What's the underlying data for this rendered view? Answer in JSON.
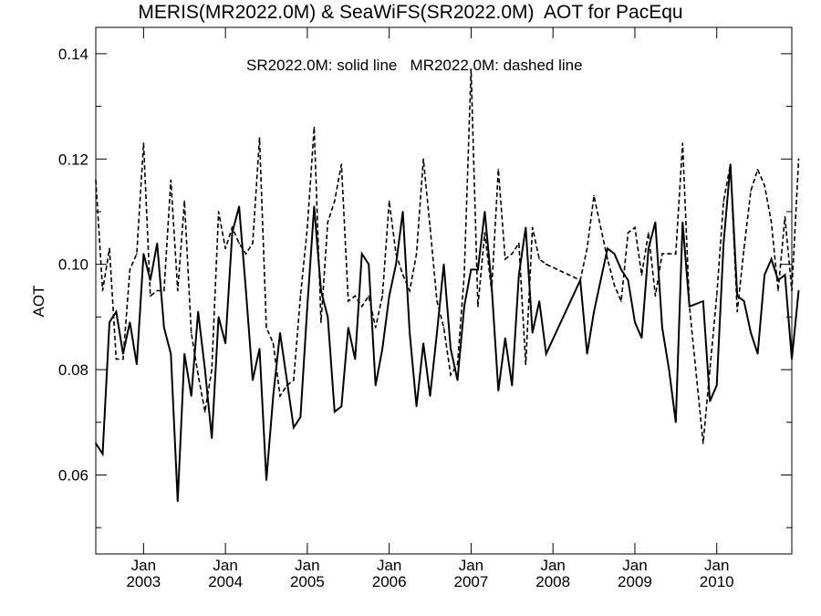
{
  "chart_data": {
    "type": "line",
    "title": "MERIS(MR2022.0M) & SeaWiFS(SR2022.0M)  AOT for PacEqu",
    "annotation": "SR2022.0M: solid line   MR2022.0M: dashed line",
    "ylabel": "AOT",
    "xlabel": "",
    "xlim": [
      "2002-06",
      "2010-12"
    ],
    "ylim": [
      0.045,
      0.145
    ],
    "y_ticks": [
      "0.06",
      "0.08",
      "0.10",
      "0.12",
      "0.14"
    ],
    "x_ticks": [
      {
        "top": "Jan",
        "bottom": "2003",
        "date": "2003-01"
      },
      {
        "top": "Jan",
        "bottom": "2004",
        "date": "2004-01"
      },
      {
        "top": "Jan",
        "bottom": "2005",
        "date": "2005-01"
      },
      {
        "top": "Jan",
        "bottom": "2006",
        "date": "2006-01"
      },
      {
        "top": "Jan",
        "bottom": "2007",
        "date": "2007-01"
      },
      {
        "top": "Jan",
        "bottom": "2008",
        "date": "2008-01"
      },
      {
        "top": "Jan",
        "bottom": "2009",
        "date": "2009-01"
      },
      {
        "top": "Jan",
        "bottom": "2010",
        "date": "2010-01"
      }
    ],
    "series": [
      {
        "style": "solid",
        "points": [
          [
            "2002-06",
            0.066
          ],
          [
            "2002-07",
            0.064
          ],
          [
            "2002-08",
            0.089
          ],
          [
            "2002-09",
            0.091
          ],
          [
            "2002-10",
            0.083
          ],
          [
            "2002-11",
            0.089
          ],
          [
            "2002-12",
            0.081
          ],
          [
            "2003-01",
            0.102
          ],
          [
            "2003-02",
            0.097
          ],
          [
            "2003-03",
            0.104
          ],
          [
            "2003-04",
            0.088
          ],
          [
            "2003-05",
            0.083
          ],
          [
            "2003-06",
            0.055
          ],
          [
            "2003-07",
            0.083
          ],
          [
            "2003-08",
            0.075
          ],
          [
            "2003-09",
            0.091
          ],
          [
            "2003-10",
            0.08
          ],
          [
            "2003-11",
            0.067
          ],
          [
            "2003-12",
            0.09
          ],
          [
            "2004-01",
            0.085
          ],
          [
            "2004-02",
            0.106
          ],
          [
            "2004-03",
            0.111
          ],
          [
            "2004-04",
            0.095
          ],
          [
            "2004-05",
            0.078
          ],
          [
            "2004-06",
            0.084
          ],
          [
            "2004-07",
            0.059
          ],
          [
            "2004-08",
            0.075
          ],
          [
            "2004-09",
            0.087
          ],
          [
            "2004-10",
            0.078
          ],
          [
            "2004-11",
            0.069
          ],
          [
            "2004-12",
            0.071
          ],
          [
            "2005-01",
            0.092
          ],
          [
            "2005-02",
            0.111
          ],
          [
            "2005-03",
            0.095
          ],
          [
            "2005-04",
            0.09
          ],
          [
            "2005-05",
            0.072
          ],
          [
            "2005-06",
            0.073
          ],
          [
            "2005-07",
            0.088
          ],
          [
            "2005-08",
            0.082
          ],
          [
            "2005-09",
            0.102
          ],
          [
            "2005-10",
            0.1
          ],
          [
            "2005-11",
            0.077
          ],
          [
            "2005-12",
            0.084
          ],
          [
            "2006-01",
            0.094
          ],
          [
            "2006-02",
            0.1
          ],
          [
            "2006-03",
            0.11
          ],
          [
            "2006-04",
            0.087
          ],
          [
            "2006-05",
            0.073
          ],
          [
            "2006-06",
            0.085
          ],
          [
            "2006-07",
            0.075
          ],
          [
            "2006-08",
            0.087
          ],
          [
            "2006-09",
            0.1
          ],
          [
            "2006-10",
            0.084
          ],
          [
            "2006-11",
            0.078
          ],
          [
            "2006-12",
            0.092
          ],
          [
            "2007-01",
            0.099
          ],
          [
            "2007-02",
            0.099
          ],
          [
            "2007-03",
            0.11
          ],
          [
            "2007-04",
            0.096
          ],
          [
            "2007-05",
            0.076
          ],
          [
            "2007-06",
            0.086
          ],
          [
            "2007-07",
            0.077
          ],
          [
            "2007-08",
            0.098
          ],
          [
            "2007-09",
            0.107
          ],
          [
            "2007-10",
            0.087
          ],
          [
            "2007-11",
            0.093
          ],
          [
            "2007-12",
            0.083
          ],
          [
            "2008-05",
            0.097
          ],
          [
            "2008-06",
            0.083
          ],
          [
            "2008-07",
            0.091
          ],
          [
            "2008-08",
            0.097
          ],
          [
            "2008-09",
            0.103
          ],
          [
            "2008-10",
            0.102
          ],
          [
            "2008-11",
            0.099
          ],
          [
            "2008-12",
            0.097
          ],
          [
            "2009-01",
            0.089
          ],
          [
            "2009-02",
            0.086
          ],
          [
            "2009-03",
            0.103
          ],
          [
            "2009-04",
            0.108
          ],
          [
            "2009-05",
            0.088
          ],
          [
            "2009-06",
            0.08
          ],
          [
            "2009-07",
            0.07
          ],
          [
            "2009-08",
            0.108
          ],
          [
            "2009-09",
            0.092
          ],
          [
            "2009-11",
            0.093
          ],
          [
            "2009-12",
            0.074
          ],
          [
            "2010-01",
            0.077
          ],
          [
            "2010-02",
            0.104
          ],
          [
            "2010-03",
            0.119
          ],
          [
            "2010-04",
            0.094
          ],
          [
            "2010-05",
            0.093
          ],
          [
            "2010-06",
            0.087
          ],
          [
            "2010-07",
            0.083
          ],
          [
            "2010-08",
            0.098
          ],
          [
            "2010-09",
            0.101
          ],
          [
            "2010-10",
            0.097
          ],
          [
            "2010-11",
            0.098
          ],
          [
            "2010-12",
            0.082
          ],
          [
            "2011-01",
            0.095
          ]
        ]
      },
      {
        "style": "dashed",
        "points": [
          [
            "2002-06",
            0.116
          ],
          [
            "2002-07",
            0.095
          ],
          [
            "2002-08",
            0.103
          ],
          [
            "2002-09",
            0.082
          ],
          [
            "2002-10",
            0.082
          ],
          [
            "2002-11",
            0.099
          ],
          [
            "2002-12",
            0.102
          ],
          [
            "2003-01",
            0.123
          ],
          [
            "2003-02",
            0.094
          ],
          [
            "2003-03",
            0.095
          ],
          [
            "2003-04",
            0.095
          ],
          [
            "2003-05",
            0.116
          ],
          [
            "2003-06",
            0.095
          ],
          [
            "2003-07",
            0.112
          ],
          [
            "2003-08",
            0.087
          ],
          [
            "2003-09",
            0.079
          ],
          [
            "2003-10",
            0.072
          ],
          [
            "2003-11",
            0.08
          ],
          [
            "2003-12",
            0.11
          ],
          [
            "2004-01",
            0.103
          ],
          [
            "2004-02",
            0.107
          ],
          [
            "2004-03",
            0.104
          ],
          [
            "2004-04",
            0.102
          ],
          [
            "2004-05",
            0.104
          ],
          [
            "2004-06",
            0.124
          ],
          [
            "2004-07",
            0.088
          ],
          [
            "2004-08",
            0.085
          ],
          [
            "2004-09",
            0.075
          ],
          [
            "2004-10",
            0.077
          ],
          [
            "2004-11",
            0.078
          ],
          [
            "2004-12",
            0.094
          ],
          [
            "2005-01",
            0.107
          ],
          [
            "2005-02",
            0.126
          ],
          [
            "2005-03",
            0.089
          ],
          [
            "2005-04",
            0.108
          ],
          [
            "2005-05",
            0.112
          ],
          [
            "2005-06",
            0.119
          ],
          [
            "2005-07",
            0.093
          ],
          [
            "2005-08",
            0.094
          ],
          [
            "2005-09",
            0.092
          ],
          [
            "2005-10",
            0.094
          ],
          [
            "2005-11",
            0.088
          ],
          [
            "2005-12",
            0.094
          ],
          [
            "2006-01",
            0.112
          ],
          [
            "2006-02",
            0.102
          ],
          [
            "2006-03",
            0.098
          ],
          [
            "2006-04",
            0.095
          ],
          [
            "2006-05",
            0.102
          ],
          [
            "2006-06",
            0.12
          ],
          [
            "2006-07",
            0.107
          ],
          [
            "2006-08",
            0.093
          ],
          [
            "2006-09",
            0.088
          ],
          [
            "2006-10",
            0.079
          ],
          [
            "2006-11",
            0.081
          ],
          [
            "2006-12",
            0.098
          ],
          [
            "2007-01",
            0.137
          ],
          [
            "2007-02",
            0.092
          ],
          [
            "2007-03",
            0.106
          ],
          [
            "2007-04",
            0.095
          ],
          [
            "2007-05",
            0.118
          ],
          [
            "2007-06",
            0.101
          ],
          [
            "2007-07",
            0.102
          ],
          [
            "2007-08",
            0.104
          ],
          [
            "2007-09",
            0.081
          ],
          [
            "2007-10",
            0.107
          ],
          [
            "2007-11",
            0.101
          ],
          [
            "2007-12",
            0.1
          ],
          [
            "2008-05",
            0.097
          ],
          [
            "2008-06",
            0.103
          ],
          [
            "2008-07",
            0.113
          ],
          [
            "2008-08",
            0.107
          ],
          [
            "2008-09",
            0.101
          ],
          [
            "2008-10",
            0.096
          ],
          [
            "2008-11",
            0.093
          ],
          [
            "2008-12",
            0.106
          ],
          [
            "2009-01",
            0.107
          ],
          [
            "2009-02",
            0.098
          ],
          [
            "2009-03",
            0.106
          ],
          [
            "2009-04",
            0.094
          ],
          [
            "2009-05",
            0.102
          ],
          [
            "2009-06",
            0.102
          ],
          [
            "2009-07",
            0.102
          ],
          [
            "2009-08",
            0.123
          ],
          [
            "2009-09",
            0.092
          ],
          [
            "2009-11",
            0.066
          ],
          [
            "2009-12",
            0.08
          ],
          [
            "2010-01",
            0.094
          ],
          [
            "2010-02",
            0.112
          ],
          [
            "2010-03",
            0.119
          ],
          [
            "2010-04",
            0.091
          ],
          [
            "2010-05",
            0.103
          ],
          [
            "2010-06",
            0.114
          ],
          [
            "2010-07",
            0.118
          ],
          [
            "2010-08",
            0.115
          ],
          [
            "2010-09",
            0.108
          ],
          [
            "2010-10",
            0.095
          ],
          [
            "2010-11",
            0.109
          ],
          [
            "2010-12",
            0.095
          ],
          [
            "2011-01",
            0.12
          ]
        ]
      }
    ]
  }
}
